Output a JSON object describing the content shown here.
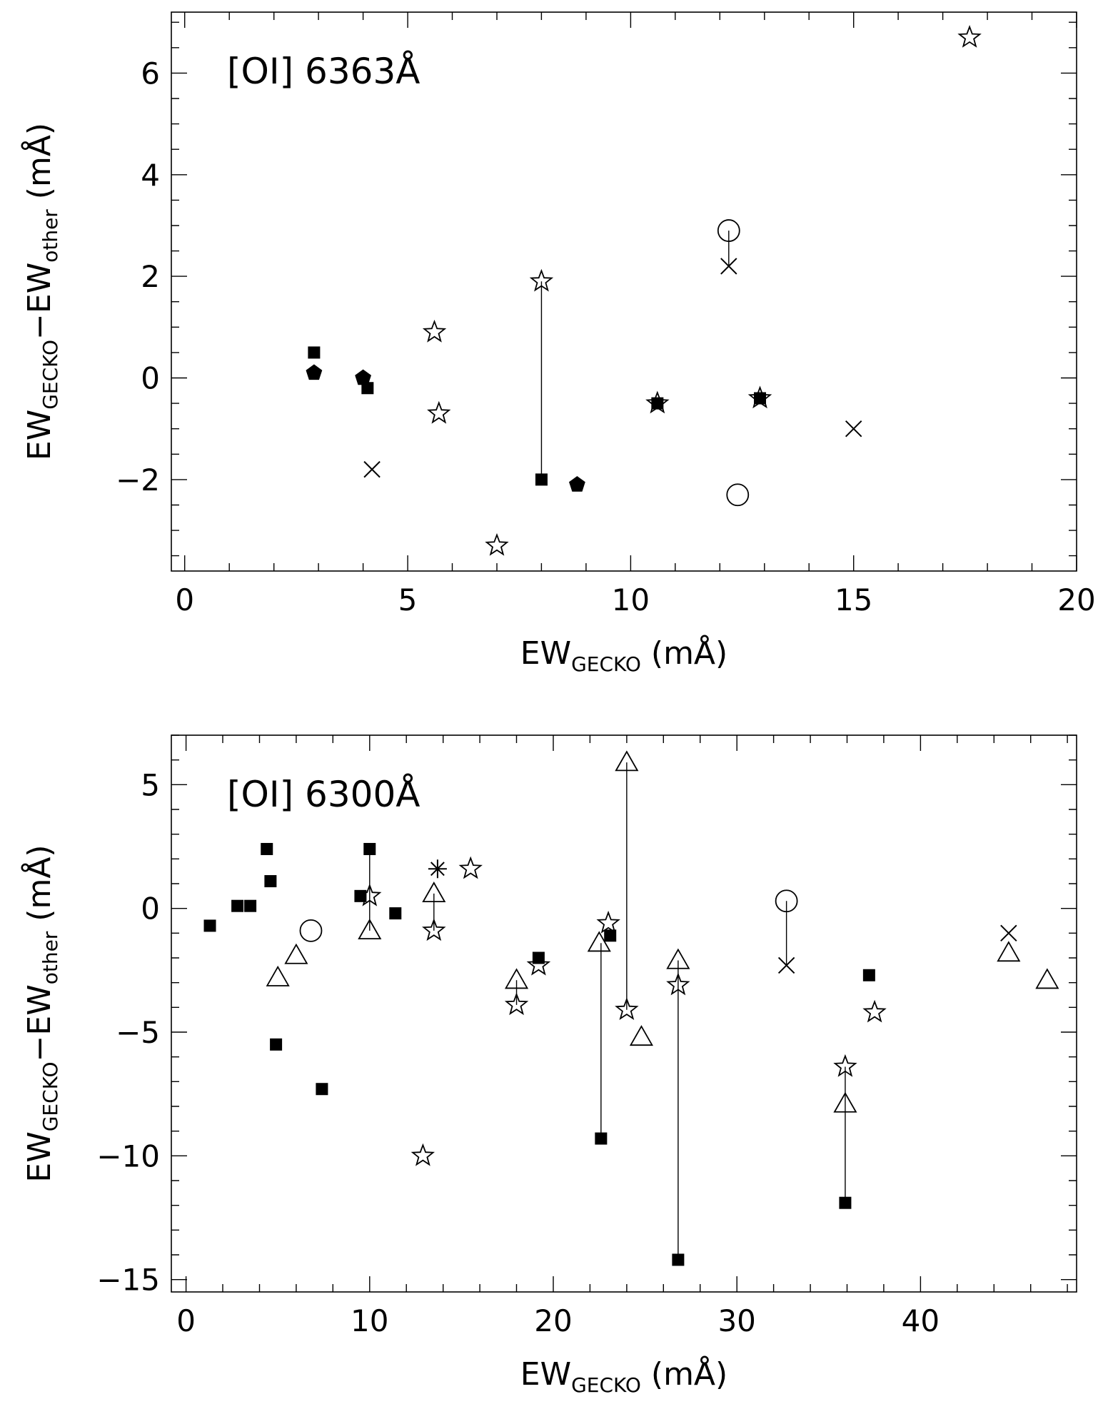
{
  "chart_data": [
    {
      "type": "scatter",
      "title": "[OI] 6363Å",
      "xlabel": "EW_GECKO (mÅ)",
      "ylabel": "EW_GECKO − EW_other (mÅ)",
      "xlabel_parts": {
        "main": "EW",
        "sub": "GECKO",
        "unit": " (mÅ)"
      },
      "ylabel_parts": {
        "main1": "EW",
        "sub1": "GECKO",
        "minus": "−",
        "main2": "EW",
        "sub2": "other",
        "unit": " (mÅ)"
      },
      "xlim": [
        -0.3,
        20
      ],
      "ylim": [
        -3.8,
        7.2
      ],
      "xticks": [
        0,
        5,
        10,
        15,
        20
      ],
      "xtick_labels": [
        "0",
        "5",
        "10",
        "15",
        "20"
      ],
      "yticks": [
        -2,
        0,
        2,
        4,
        6
      ],
      "ytick_labels": [
        "−2",
        "0",
        "2",
        "4",
        "6"
      ],
      "grid": false,
      "points": [
        {
          "x": 2.9,
          "y": 0.5,
          "marker": "filled-square"
        },
        {
          "x": 4.1,
          "y": -0.2,
          "marker": "filled-square"
        },
        {
          "x": 8.0,
          "y": -2.0,
          "marker": "filled-square"
        },
        {
          "x": 10.6,
          "y": -0.5,
          "marker": "filled-square"
        },
        {
          "x": 12.9,
          "y": -0.4,
          "marker": "filled-square"
        },
        {
          "x": 2.9,
          "y": 0.1,
          "marker": "filled-pentagon"
        },
        {
          "x": 4.0,
          "y": 0.0,
          "marker": "filled-pentagon"
        },
        {
          "x": 8.8,
          "y": -2.1,
          "marker": "filled-pentagon"
        },
        {
          "x": 5.6,
          "y": 0.9,
          "marker": "star"
        },
        {
          "x": 5.7,
          "y": -0.7,
          "marker": "star"
        },
        {
          "x": 7.0,
          "y": -3.3,
          "marker": "star"
        },
        {
          "x": 8.0,
          "y": 1.9,
          "marker": "star"
        },
        {
          "x": 10.6,
          "y": -0.5,
          "marker": "star"
        },
        {
          "x": 12.9,
          "y": -0.4,
          "marker": "star"
        },
        {
          "x": 17.6,
          "y": 6.7,
          "marker": "star"
        },
        {
          "x": 4.2,
          "y": -1.8,
          "marker": "cross"
        },
        {
          "x": 12.2,
          "y": 2.2,
          "marker": "cross"
        },
        {
          "x": 15.0,
          "y": -1.0,
          "marker": "cross"
        },
        {
          "x": 12.2,
          "y": 2.9,
          "marker": "open-circle"
        },
        {
          "x": 12.4,
          "y": -2.3,
          "marker": "open-circle"
        }
      ],
      "connectors": [
        {
          "x1": 8.0,
          "y1": 1.9,
          "x2": 8.0,
          "y2": -2.0
        },
        {
          "x1": 12.2,
          "y1": 2.9,
          "x2": 12.2,
          "y2": 2.2
        }
      ]
    },
    {
      "type": "scatter",
      "title": "[OI] 6300Å",
      "xlabel": "EW_GECKO (mÅ)",
      "ylabel": "EW_GECKO − EW_other (mÅ)",
      "xlabel_parts": {
        "main": "EW",
        "sub": "GECKO",
        "unit": " (mÅ)"
      },
      "ylabel_parts": {
        "main1": "EW",
        "sub1": "GECKO",
        "minus": "−",
        "main2": "EW",
        "sub2": "other",
        "unit": " (mÅ)"
      },
      "xlim": [
        -0.8,
        48.5
      ],
      "ylim": [
        -15.5,
        7.0
      ],
      "xticks": [
        0,
        10,
        20,
        30,
        40
      ],
      "xtick_labels": [
        "0",
        "10",
        "20",
        "30",
        "40"
      ],
      "yticks": [
        -15,
        -10,
        -5,
        0,
        5
      ],
      "ytick_labels": [
        "−15",
        "−10",
        "−5",
        "0",
        "5"
      ],
      "grid": false,
      "points": [
        {
          "x": 1.3,
          "y": -0.7,
          "marker": "filled-square"
        },
        {
          "x": 2.8,
          "y": 0.1,
          "marker": "filled-square"
        },
        {
          "x": 3.5,
          "y": 0.1,
          "marker": "filled-square"
        },
        {
          "x": 4.4,
          "y": 2.4,
          "marker": "filled-square"
        },
        {
          "x": 4.6,
          "y": 1.1,
          "marker": "filled-square"
        },
        {
          "x": 4.9,
          "y": -5.5,
          "marker": "filled-square"
        },
        {
          "x": 7.4,
          "y": -7.3,
          "marker": "filled-square"
        },
        {
          "x": 9.5,
          "y": 0.5,
          "marker": "filled-square"
        },
        {
          "x": 10.0,
          "y": 2.4,
          "marker": "filled-square"
        },
        {
          "x": 11.4,
          "y": -0.2,
          "marker": "filled-square"
        },
        {
          "x": 19.2,
          "y": -2.0,
          "marker": "filled-square"
        },
        {
          "x": 22.6,
          "y": -9.3,
          "marker": "filled-square"
        },
        {
          "x": 23.1,
          "y": -1.1,
          "marker": "filled-square"
        },
        {
          "x": 26.8,
          "y": -14.2,
          "marker": "filled-square"
        },
        {
          "x": 35.9,
          "y": -11.9,
          "marker": "filled-square"
        },
        {
          "x": 37.2,
          "y": -2.7,
          "marker": "filled-square"
        },
        {
          "x": 6.8,
          "y": -0.9,
          "marker": "open-circle"
        },
        {
          "x": 32.7,
          "y": 0.3,
          "marker": "open-circle"
        },
        {
          "x": 5.0,
          "y": -2.8,
          "marker": "triangle"
        },
        {
          "x": 6.0,
          "y": -1.9,
          "marker": "triangle"
        },
        {
          "x": 10.0,
          "y": -0.9,
          "marker": "triangle"
        },
        {
          "x": 13.5,
          "y": 0.6,
          "marker": "triangle"
        },
        {
          "x": 18.0,
          "y": -2.9,
          "marker": "triangle"
        },
        {
          "x": 22.5,
          "y": -1.4,
          "marker": "triangle"
        },
        {
          "x": 24.0,
          "y": 5.9,
          "marker": "triangle"
        },
        {
          "x": 24.8,
          "y": -5.2,
          "marker": "triangle"
        },
        {
          "x": 26.8,
          "y": -2.1,
          "marker": "triangle"
        },
        {
          "x": 35.9,
          "y": -7.9,
          "marker": "triangle"
        },
        {
          "x": 44.8,
          "y": -1.8,
          "marker": "triangle"
        },
        {
          "x": 46.9,
          "y": -2.9,
          "marker": "triangle"
        },
        {
          "x": 10.0,
          "y": 0.5,
          "marker": "star"
        },
        {
          "x": 12.9,
          "y": -10.0,
          "marker": "star"
        },
        {
          "x": 13.5,
          "y": -0.9,
          "marker": "star"
        },
        {
          "x": 15.5,
          "y": 1.6,
          "marker": "star"
        },
        {
          "x": 18.0,
          "y": -3.9,
          "marker": "star"
        },
        {
          "x": 19.2,
          "y": -2.3,
          "marker": "star"
        },
        {
          "x": 23.0,
          "y": -0.6,
          "marker": "star"
        },
        {
          "x": 24.0,
          "y": -4.1,
          "marker": "star"
        },
        {
          "x": 26.8,
          "y": -3.1,
          "marker": "star"
        },
        {
          "x": 35.9,
          "y": -6.4,
          "marker": "star"
        },
        {
          "x": 37.5,
          "y": -4.2,
          "marker": "star"
        },
        {
          "x": 13.7,
          "y": 1.6,
          "marker": "asterisk"
        },
        {
          "x": 32.7,
          "y": -2.3,
          "marker": "cross"
        },
        {
          "x": 44.8,
          "y": -1.0,
          "marker": "cross"
        }
      ],
      "connectors": [
        {
          "x1": 10.0,
          "y1": 2.4,
          "x2": 10.0,
          "y2": -0.9
        },
        {
          "x1": 13.5,
          "y1": 0.6,
          "x2": 13.5,
          "y2": -0.9
        },
        {
          "x1": 18.0,
          "y1": -2.9,
          "x2": 18.0,
          "y2": -3.9
        },
        {
          "x1": 22.6,
          "y1": -1.4,
          "x2": 22.6,
          "y2": -9.3
        },
        {
          "x1": 24.0,
          "y1": 5.9,
          "x2": 24.0,
          "y2": -4.1
        },
        {
          "x1": 26.8,
          "y1": -2.1,
          "x2": 26.8,
          "y2": -14.2
        },
        {
          "x1": 35.9,
          "y1": -6.4,
          "x2": 35.9,
          "y2": -11.9
        },
        {
          "x1": 32.7,
          "y1": 0.3,
          "x2": 32.7,
          "y2": -2.3
        }
      ]
    }
  ]
}
